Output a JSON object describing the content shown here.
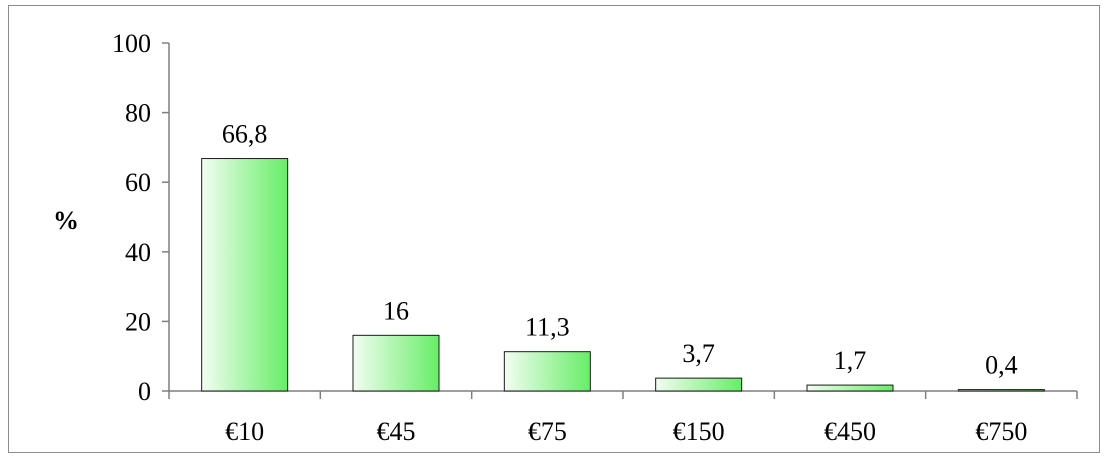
{
  "chart_data": {
    "type": "bar",
    "categories": [
      "€10",
      "€45",
      "€75",
      "€150",
      "€450",
      "€750"
    ],
    "values": [
      66.8,
      16,
      11.3,
      3.7,
      1.7,
      0.4
    ],
    "data_labels": [
      "66,8",
      "16",
      "11,3",
      "3,7",
      "1,7",
      "0,4"
    ],
    "title": "",
    "xlabel": "",
    "ylabel": "%",
    "ylim": [
      0,
      100
    ],
    "yticks": [
      0,
      20,
      40,
      60,
      80,
      100
    ],
    "ytick_labels": [
      "0",
      "20",
      "40",
      "60",
      "80",
      "100"
    ],
    "grid": false,
    "legend": "none",
    "colors": {
      "bar_fill_light": "#f2fdf2",
      "bar_fill_dark": "#66ee66",
      "bar_stroke": "#1a1a1a",
      "axis": "#7f7f7f"
    }
  }
}
